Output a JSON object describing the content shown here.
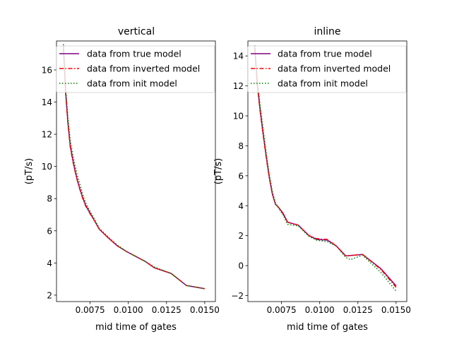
{
  "chart_data": [
    {
      "type": "line",
      "title": "vertical",
      "xlabel": "mid time of gates",
      "ylabel": "(pT/s)",
      "xlim": [
        0.0053,
        0.0157
      ],
      "ylim": [
        1.6,
        17.8
      ],
      "xticks": [
        0.0075,
        0.01,
        0.0125,
        0.015
      ],
      "xtick_labels": [
        "0.0075",
        "0.0100",
        "0.0125",
        "0.0150"
      ],
      "yticks": [
        2,
        4,
        6,
        8,
        10,
        12,
        14,
        16
      ],
      "ytick_labels": [
        "2",
        "4",
        "6",
        "8",
        "10",
        "12",
        "14",
        "16"
      ],
      "legend": "top-right",
      "series": [
        {
          "name": "data from true model",
          "style": "solid",
          "color": "#800080",
          "x": [
            0.00575,
            0.0059,
            0.00605,
            0.0062,
            0.00635,
            0.0065,
            0.00665,
            0.0068,
            0.007,
            0.0072,
            0.0075,
            0.0078,
            0.0081,
            0.0087,
            0.0093,
            0.0099,
            0.0105,
            0.0111,
            0.0117,
            0.0128,
            0.0138,
            0.015
          ],
          "y": [
            17.5,
            14.6,
            12.7,
            11.3,
            10.5,
            9.8,
            9.2,
            8.7,
            8.1,
            7.6,
            7.1,
            6.6,
            6.1,
            5.55,
            5.05,
            4.7,
            4.4,
            4.1,
            3.7,
            3.35,
            2.6,
            2.4
          ]
        },
        {
          "name": "data from inverted model",
          "style": "dashdot",
          "color": "#ff0000",
          "x": [
            0.00575,
            0.0059,
            0.00605,
            0.0062,
            0.00635,
            0.0065,
            0.00665,
            0.0068,
            0.007,
            0.0072,
            0.0075,
            0.0078,
            0.0081,
            0.0087,
            0.0093,
            0.0099,
            0.0105,
            0.0111,
            0.0117,
            0.0128,
            0.0138,
            0.015
          ],
          "y": [
            17.4,
            14.5,
            12.6,
            11.2,
            10.4,
            9.75,
            9.15,
            8.65,
            8.05,
            7.55,
            7.05,
            6.6,
            6.1,
            5.55,
            5.05,
            4.7,
            4.4,
            4.1,
            3.7,
            3.35,
            2.6,
            2.4
          ]
        },
        {
          "name": "data from init model",
          "style": "dotted",
          "color": "#008000",
          "x": [
            0.00575,
            0.0059,
            0.00605,
            0.0062,
            0.00635,
            0.0065,
            0.00665,
            0.0068,
            0.007,
            0.0072,
            0.0075,
            0.0078,
            0.0081,
            0.0087,
            0.0093,
            0.0099,
            0.0105,
            0.0111,
            0.0117,
            0.0128,
            0.0138,
            0.015
          ],
          "y": [
            17.6,
            14.9,
            13.0,
            11.6,
            10.8,
            10.1,
            9.5,
            9.0,
            8.3,
            7.75,
            7.2,
            6.7,
            6.15,
            5.6,
            5.1,
            4.7,
            4.4,
            4.1,
            3.75,
            3.35,
            2.6,
            2.4
          ]
        }
      ]
    },
    {
      "type": "line",
      "title": "inline",
      "xlabel": "mid time of gates",
      "ylabel": "(pT/s)",
      "xlim": [
        0.0053,
        0.0157
      ],
      "ylim": [
        -2.4,
        15.0
      ],
      "xticks": [
        0.0075,
        0.01,
        0.0125,
        0.015
      ],
      "xtick_labels": [
        "0.0075",
        "0.0100",
        "0.0125",
        "0.0150"
      ],
      "yticks": [
        -2,
        0,
        2,
        4,
        6,
        8,
        10,
        12,
        14
      ],
      "ytick_labels": [
        "−2",
        "0",
        "2",
        "4",
        "6",
        "8",
        "10",
        "12",
        "14"
      ],
      "legend": "top-right",
      "series": [
        {
          "name": "data from true model",
          "style": "solid",
          "color": "#800080",
          "x": [
            0.00575,
            0.0059,
            0.0061,
            0.0063,
            0.0065,
            0.0067,
            0.0069,
            0.0071,
            0.0073,
            0.0076,
            0.0079,
            0.0086,
            0.0093,
            0.0098,
            0.0105,
            0.0111,
            0.0117,
            0.0123,
            0.0128,
            0.014,
            0.015
          ],
          "y": [
            14.6,
            12.3,
            10.4,
            8.8,
            7.3,
            5.9,
            4.8,
            4.1,
            3.9,
            3.5,
            2.9,
            2.7,
            2.0,
            1.75,
            1.7,
            1.3,
            0.65,
            0.7,
            0.75,
            -0.2,
            -1.35
          ]
        },
        {
          "name": "data from inverted model",
          "style": "dashdot",
          "color": "#ff0000",
          "x": [
            0.00575,
            0.0059,
            0.0061,
            0.0063,
            0.0065,
            0.0067,
            0.0069,
            0.0071,
            0.0073,
            0.0076,
            0.0079,
            0.0086,
            0.0093,
            0.0098,
            0.0105,
            0.0111,
            0.0117,
            0.0123,
            0.0128,
            0.014,
            0.015
          ],
          "y": [
            14.5,
            12.2,
            10.3,
            8.7,
            7.2,
            5.85,
            4.75,
            4.1,
            3.9,
            3.45,
            2.9,
            2.7,
            2.0,
            1.8,
            1.75,
            1.3,
            0.65,
            0.7,
            0.75,
            -0.25,
            -1.45
          ]
        },
        {
          "name": "data from init model",
          "style": "dotted",
          "color": "#008000",
          "x": [
            0.00575,
            0.0059,
            0.0061,
            0.0063,
            0.0065,
            0.0067,
            0.0069,
            0.0071,
            0.0073,
            0.0076,
            0.0079,
            0.0086,
            0.0093,
            0.0098,
            0.0105,
            0.0111,
            0.0117,
            0.012,
            0.0128,
            0.014,
            0.015
          ],
          "y": [
            14.7,
            12.6,
            10.7,
            9.1,
            7.5,
            6.1,
            4.95,
            4.2,
            3.85,
            3.4,
            2.75,
            2.65,
            1.95,
            1.7,
            1.6,
            1.3,
            0.55,
            0.4,
            0.7,
            -0.45,
            -1.7
          ]
        }
      ]
    }
  ]
}
